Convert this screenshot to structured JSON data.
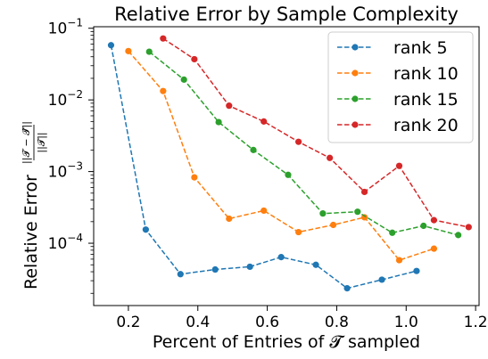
{
  "chart_data": {
    "type": "line",
    "title": "Relative Error by Sample Complexity",
    "xlabel": "Percent of Entries of 𝓣 sampled",
    "ylabel": {
      "prefix": "Relative Error",
      "numerator": "||𝓣 − 𝓣̂||",
      "denominator": "||𝓣||"
    },
    "xlim": [
      0.1,
      1.21
    ],
    "ylim": [
      1.35e-05,
      0.105
    ],
    "yscale": "log",
    "xticks": [
      0.2,
      0.4,
      0.6,
      0.8,
      1.0,
      1.2
    ],
    "xtick_labels": [
      "0.2",
      "0.4",
      "0.6",
      "0.8",
      "1.0",
      "1.2"
    ],
    "yticks": [
      0.1,
      0.01,
      0.001,
      0.0001
    ],
    "ytick_labels": [
      {
        "base": "10",
        "exp": "−1"
      },
      {
        "base": "10",
        "exp": "−2"
      },
      {
        "base": "10",
        "exp": "−3"
      },
      {
        "base": "10",
        "exp": "−4"
      }
    ],
    "grid": false,
    "legend_position": "top-right",
    "series": [
      {
        "name": "rank 5",
        "color": "#1f77b4",
        "x": [
          0.15,
          0.25,
          0.35,
          0.45,
          0.55,
          0.64,
          0.74,
          0.83,
          0.93,
          1.03
        ],
        "y": [
          0.058,
          0.000155,
          3.7e-05,
          4.3e-05,
          4.7e-05,
          6.4e-05,
          5e-05,
          2.35e-05,
          3.1e-05,
          4.1e-05
        ]
      },
      {
        "name": "rank 10",
        "color": "#ff7f0e",
        "x": [
          0.2,
          0.3,
          0.39,
          0.49,
          0.59,
          0.69,
          0.79,
          0.88,
          0.98,
          1.08
        ],
        "y": [
          0.048,
          0.0133,
          0.00083,
          0.00022,
          0.000285,
          0.000143,
          0.00018,
          0.00023,
          5.8e-05,
          8.4e-05
        ]
      },
      {
        "name": "rank 15",
        "color": "#2ca02c",
        "x": [
          0.26,
          0.36,
          0.46,
          0.56,
          0.66,
          0.76,
          0.86,
          0.96,
          1.05,
          1.15
        ],
        "y": [
          0.047,
          0.0192,
          0.0049,
          0.002,
          0.0009,
          0.00026,
          0.000275,
          0.00014,
          0.000175,
          0.00013
        ]
      },
      {
        "name": "rank 20",
        "color": "#d62728",
        "x": [
          0.3,
          0.39,
          0.49,
          0.59,
          0.69,
          0.78,
          0.88,
          0.98,
          1.08,
          1.18
        ],
        "y": [
          0.072,
          0.037,
          0.0083,
          0.005,
          0.0026,
          0.00155,
          0.00052,
          0.0012,
          0.00021,
          0.000168
        ]
      }
    ]
  }
}
